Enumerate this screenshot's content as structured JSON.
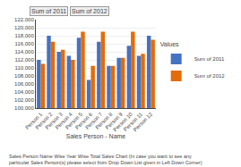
{
  "chart_data": {
    "type": "bar",
    "categories": [
      "Person 1",
      "Person 2",
      "Person 3",
      "Person 4",
      "Person 5",
      "Person 6",
      "Person 7",
      "Person 8",
      "Person 9",
      "Person 10",
      "Person 11",
      "Person 12"
    ],
    "series": [
      {
        "name": "Sum of 2011",
        "color": "#4472C4",
        "values": [
          112000,
          118000,
          114000,
          113000,
          117500,
          107000,
          116500,
          110500,
          112500,
          115500,
          113000,
          118000
        ]
      },
      {
        "name": "Sum of 2012",
        "color": "#E36C09",
        "values": [
          111000,
          116500,
          114500,
          112000,
          119000,
          110500,
          119000,
          110500,
          112500,
          119000,
          113500,
          117000
        ]
      }
    ],
    "xlabel": "Sales Person - Name",
    "legend_title": "Values",
    "legend": "right",
    "grid": true,
    "ylim": [
      100000,
      122000
    ],
    "yticks": [
      {
        "value": 100000,
        "label": "100,000"
      },
      {
        "value": 102000,
        "label": "102,000"
      },
      {
        "value": 104000,
        "label": "104,000"
      },
      {
        "value": 106000,
        "label": "106,000"
      },
      {
        "value": 108000,
        "label": "108,000"
      },
      {
        "value": 110000,
        "label": "110,000"
      },
      {
        "value": 112000,
        "label": "112,000"
      },
      {
        "value": 114000,
        "label": "114,000"
      },
      {
        "value": 116000,
        "label": "116,000"
      },
      {
        "value": 118000,
        "label": "118,000"
      },
      {
        "value": 120000,
        "label": "120,000"
      },
      {
        "value": 122000,
        "label": "122,000"
      }
    ],
    "annotations": [
      {
        "text": "Sum of 2011"
      },
      {
        "text": "Sum of 2012"
      },
      {
        "text": "Sales Person Name Wise Year Wise Total Sales Chart (In case you want to see any\nparticular Sales Person(s) please select from Drop Down List given in Left Down Corner)"
      }
    ]
  }
}
